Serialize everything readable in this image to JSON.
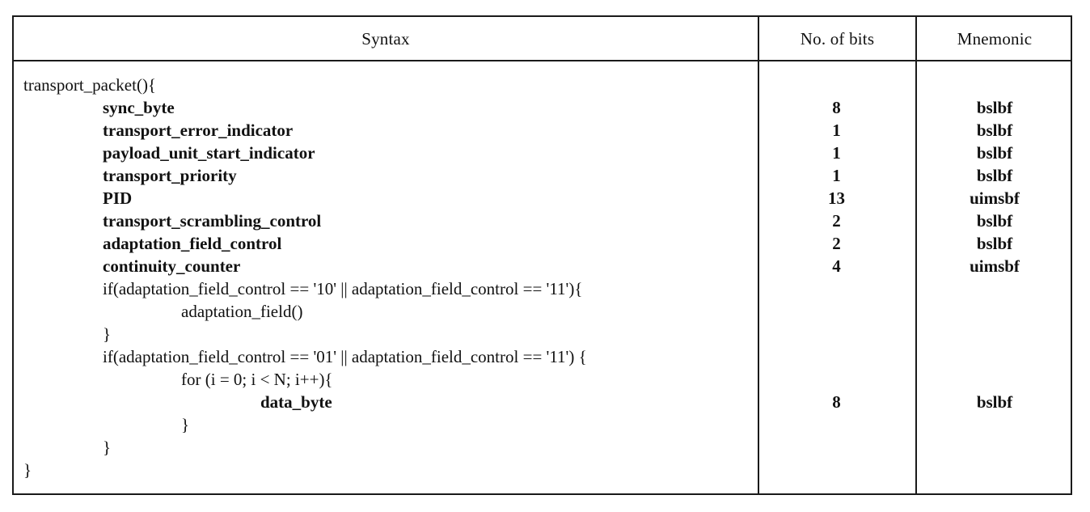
{
  "headers": {
    "syntax": "Syntax",
    "bits": "No. of bits",
    "mnemonic": "Mnemonic"
  },
  "rows": [
    {
      "text": "transport_packet(){",
      "indent": 0,
      "bold": false,
      "bits": "",
      "mnemonic": ""
    },
    {
      "text": "sync_byte",
      "indent": 1,
      "bold": true,
      "bits": "8",
      "mnemonic": "bslbf"
    },
    {
      "text": "transport_error_indicator",
      "indent": 1,
      "bold": true,
      "bits": "1",
      "mnemonic": "bslbf"
    },
    {
      "text": "payload_unit_start_indicator",
      "indent": 1,
      "bold": true,
      "bits": "1",
      "mnemonic": "bslbf"
    },
    {
      "text": "transport_priority",
      "indent": 1,
      "bold": true,
      "bits": "1",
      "mnemonic": "bslbf"
    },
    {
      "text": "PID",
      "indent": 1,
      "bold": true,
      "bits": "13",
      "mnemonic": "uimsbf"
    },
    {
      "text": "transport_scrambling_control",
      "indent": 1,
      "bold": true,
      "bits": "2",
      "mnemonic": "bslbf"
    },
    {
      "text": "adaptation_field_control",
      "indent": 1,
      "bold": true,
      "bits": "2",
      "mnemonic": "bslbf"
    },
    {
      "text": "continuity_counter",
      "indent": 1,
      "bold": true,
      "bits": "4",
      "mnemonic": "uimsbf"
    },
    {
      "text": "if(adaptation_field_control == '10' || adaptation_field_control == '11'){",
      "indent": 1,
      "bold": false,
      "bits": "",
      "mnemonic": ""
    },
    {
      "text": "adaptation_field()",
      "indent": 2,
      "bold": false,
      "bits": "",
      "mnemonic": ""
    },
    {
      "text": "}",
      "indent": 1,
      "bold": false,
      "bits": "",
      "mnemonic": ""
    },
    {
      "text": "if(adaptation_field_control == '01' || adaptation_field_control == '11') {",
      "indent": 1,
      "bold": false,
      "bits": "",
      "mnemonic": ""
    },
    {
      "text": "for (i = 0; i < N; i++){",
      "indent": 2,
      "bold": false,
      "bits": "",
      "mnemonic": ""
    },
    {
      "text": "data_byte",
      "indent": 3,
      "bold": true,
      "bits": "8",
      "mnemonic": "bslbf"
    },
    {
      "text": "}",
      "indent": 2,
      "bold": false,
      "bits": "",
      "mnemonic": ""
    },
    {
      "text": "}",
      "indent": 1,
      "bold": false,
      "bits": "",
      "mnemonic": ""
    },
    {
      "text": "}",
      "indent": 0,
      "bold": false,
      "bits": "",
      "mnemonic": ""
    }
  ]
}
